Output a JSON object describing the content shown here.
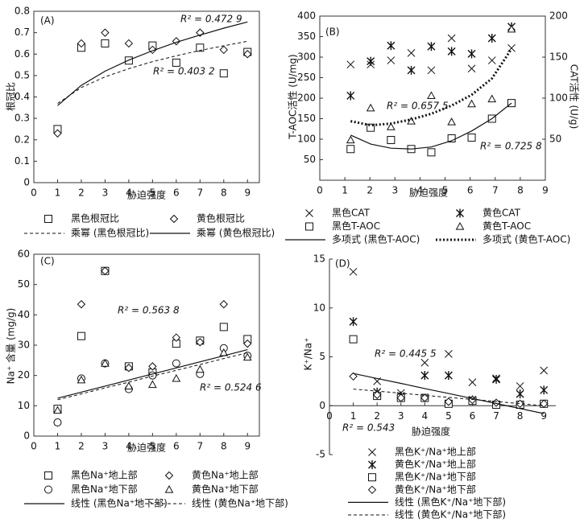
{
  "chart_data": [
    {
      "type": "scatter",
      "panel": "(A)",
      "x_label": "胁迫强度",
      "y_label": "根冠比",
      "xlim": [
        0,
        9.5
      ],
      "ylim": [
        0,
        0.8
      ],
      "xticks": [
        0,
        1,
        2,
        3,
        4,
        5,
        6,
        7,
        8,
        9
      ],
      "yticks": [
        0,
        0.1,
        0.2,
        0.3,
        0.4,
        0.5,
        0.6,
        0.7,
        0.8
      ],
      "x": [
        1,
        2,
        3,
        4,
        5,
        6,
        7,
        8,
        9
      ],
      "series": [
        {
          "name": "黑色根冠比",
          "marker": "square",
          "values": [
            0.25,
            0.63,
            0.65,
            0.57,
            0.64,
            0.56,
            0.63,
            0.51,
            0.61
          ]
        },
        {
          "name": "黄色根冠比",
          "marker": "diamond",
          "values": [
            0.23,
            0.65,
            0.7,
            0.65,
            0.62,
            0.66,
            0.7,
            0.62,
            0.6
          ]
        },
        {
          "name": "乘幂 (黑色根冠比)",
          "line": "dashed",
          "label": "R² = 0.403 2",
          "values": [
            0.37,
            0.444,
            0.494,
            0.532,
            0.565,
            0.592,
            0.617,
            0.639,
            0.66
          ]
        },
        {
          "name": "乘幂 (黄色根冠比)",
          "line": "solid",
          "label": "R² = 0.472 9",
          "values": [
            0.36,
            0.454,
            0.52,
            0.572,
            0.616,
            0.655,
            0.689,
            0.721,
            0.75
          ]
        }
      ]
    },
    {
      "type": "scatter",
      "panel": "(B)",
      "x_label": "胁迫强度",
      "y_label": "T-AOC活性 (U/mg)",
      "y2_label": "CAT活性 (U/g)",
      "xlim": [
        0,
        9
      ],
      "ylim": [
        0,
        400
      ],
      "y2lim": [
        0,
        200
      ],
      "xticks": [
        0,
        1,
        2,
        3,
        4,
        5,
        6,
        7,
        8,
        9
      ],
      "yticks": [
        50,
        100,
        150,
        200,
        250,
        300,
        350,
        400
      ],
      "y2ticks": [
        50,
        100,
        150,
        200
      ],
      "x": [
        1.23,
        2.03,
        2.84,
        3.65,
        4.45,
        5.26,
        6.06,
        6.87,
        7.65
      ],
      "series": [
        {
          "name": "黑色CAT",
          "marker": "x",
          "axis": "y2",
          "values": [
            141,
            141,
            146,
            155,
            134,
            173,
            136,
            146,
            161
          ]
        },
        {
          "name": "黄色CAT",
          "marker": "asterisk",
          "axis": "y2",
          "values": [
            103,
            145,
            164,
            134,
            163,
            157,
            154,
            173,
            187
          ]
        },
        {
          "name": "黑色T-AOC",
          "marker": "square",
          "values": [
            76,
            128,
            98,
            76,
            68,
            102,
            104,
            150,
            188
          ]
        },
        {
          "name": "黄色T-AOC",
          "marker": "triangle",
          "values": [
            98,
            176,
            130,
            144,
            206,
            142,
            186,
            198,
            368
          ]
        },
        {
          "name": "多项式 (黑色T-AOC)",
          "line": "solid",
          "label": "R² = 0.725 8",
          "values": [
            110,
            88,
            78,
            76,
            81,
            96,
            120,
            150,
            188
          ]
        },
        {
          "name": "多项式 (黄色T-AOC)",
          "line": "dotted",
          "label": "R² = 0.657 5",
          "values": [
            144,
            134,
            138,
            148,
            162,
            182,
            208,
            248,
            320
          ]
        }
      ]
    },
    {
      "type": "scatter",
      "panel": "(C)",
      "x_label": "胁迫强度",
      "y_label": "Na⁺ 含量 (mg/g)",
      "xlim": [
        0,
        9.5
      ],
      "ylim": [
        0,
        60
      ],
      "xticks": [
        0,
        1,
        2,
        3,
        4,
        5,
        6,
        7,
        8,
        9
      ],
      "yticks": [
        0,
        10,
        20,
        30,
        40,
        50,
        60
      ],
      "x": [
        1,
        2,
        3,
        4,
        5,
        6,
        7,
        8,
        9
      ],
      "series": [
        {
          "name": "黑色Na⁺地上部",
          "marker": "square",
          "values": [
            9,
            33,
            54.5,
            23,
            21,
            30.5,
            31.5,
            36,
            32
          ]
        },
        {
          "name": "黄色Na⁺地上部",
          "marker": "diamond",
          "values": [
            4.5,
            43.5,
            54.5,
            22.5,
            23,
            32.5,
            31,
            43.5,
            30.5
          ]
        },
        {
          "name": "黑色Na⁺地下部",
          "marker": "circle",
          "values": [
            4.5,
            19,
            24,
            15.5,
            20,
            24,
            20.5,
            29,
            26.5
          ]
        },
        {
          "name": "黄色Na⁺地下部",
          "marker": "triangle",
          "values": [
            8.5,
            18.5,
            24,
            16.5,
            17,
            19,
            22,
            27.5,
            26
          ]
        },
        {
          "name": "线性 (黑色Na⁺地下部)",
          "line": "solid",
          "label": "R² = 0.563 8",
          "values": [
            12.5,
            14.5,
            16.5,
            18.5,
            20.5,
            22.5,
            24.5,
            26.5,
            28.5
          ]
        },
        {
          "name": "线性 (黄色Na⁺地下部)",
          "line": "dashed",
          "label": "R² = 0.524 6",
          "values": [
            12,
            13.9,
            15.9,
            17.8,
            19.8,
            21.7,
            23.6,
            25.6,
            27.5
          ]
        }
      ]
    },
    {
      "type": "scatter",
      "panel": "(D)",
      "x_label": "胁迫强度",
      "y_label": "K⁺/Na⁺",
      "xlim": [
        0,
        9.5
      ],
      "ylim": [
        -5,
        15
      ],
      "xticks": [
        0,
        1,
        2,
        3,
        4,
        5,
        6,
        7,
        8,
        9
      ],
      "yticks": [
        -5,
        0,
        5,
        10,
        15
      ],
      "x": [
        1,
        2,
        3,
        4,
        5,
        6,
        7,
        8,
        9
      ],
      "series": [
        {
          "name": "黑色K⁺/Na⁺地上部",
          "marker": "x",
          "values": [
            13.7,
            2.5,
            1.3,
            4.4,
            5.3,
            2.4,
            2.8,
            2.0,
            3.6
          ]
        },
        {
          "name": "黄色K⁺/Na⁺地上部",
          "marker": "asterisk",
          "values": [
            8.6,
            1.4,
            1.0,
            3.1,
            3.1,
            0.6,
            2.7,
            1.2,
            1.6
          ]
        },
        {
          "name": "黑色K⁺/Na⁺地下部",
          "marker": "square",
          "values": [
            6.8,
            1.0,
            0.8,
            0.8,
            0.2,
            0.5,
            0.1,
            0.1,
            0.2
          ]
        },
        {
          "name": "黄色K⁺/Na⁺地下部",
          "marker": "diamond",
          "values": [
            3.0,
            1.1,
            0.8,
            0.8,
            0.4,
            0.6,
            0.3,
            0.2,
            0.2
          ]
        },
        {
          "name": "线性 (黑色K⁺/Na⁺地下部)",
          "line": "solid",
          "label": "R² = 0.445 5",
          "values": [
            3.3,
            2.79,
            2.28,
            1.76,
            1.25,
            0.74,
            0.23,
            -0.29,
            -0.8
          ]
        },
        {
          "name": "线性 (黄色K⁺/Na⁺地下部)",
          "line": "dashed",
          "label": "R² = 0.543",
          "values": [
            1.7,
            1.49,
            1.28,
            1.06,
            0.85,
            0.64,
            0.43,
            0.21,
            0.0
          ]
        }
      ]
    }
  ]
}
